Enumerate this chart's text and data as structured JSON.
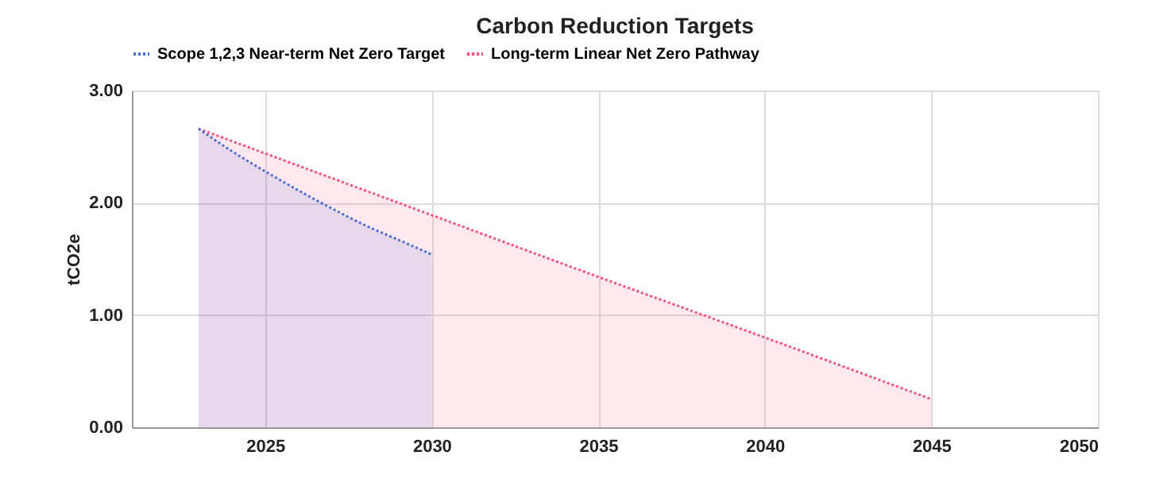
{
  "chart_data": {
    "type": "area",
    "title": "Carbon Reduction Targets",
    "ylabel": "tCO2e",
    "series": [
      {
        "name": "Scope 1,2,3 Near-term Net Zero Target",
        "color": "#4a6fd8",
        "x": [
          2023,
          2024,
          2025,
          2026,
          2027,
          2028,
          2029,
          2030
        ],
        "values": [
          2.66,
          2.46,
          2.28,
          2.11,
          1.95,
          1.8,
          1.67,
          1.54
        ]
      },
      {
        "name": "Long-term Linear Net Zero Pathway",
        "color": "#ff4d7a",
        "x": [
          2023,
          2030,
          2035,
          2040,
          2045
        ],
        "values": [
          2.66,
          1.89,
          1.34,
          0.8,
          0.25
        ]
      }
    ],
    "xlim": [
      2021,
      2050
    ],
    "xticks": [
      2025,
      2030,
      2035,
      2040,
      2045,
      2050
    ],
    "ylim": [
      0,
      3
    ],
    "yticks": [
      {
        "value": 0,
        "label": "0.00"
      },
      {
        "value": 1,
        "label": "1.00"
      },
      {
        "value": 2,
        "label": "2.00"
      },
      {
        "value": 3,
        "label": "3.00"
      }
    ],
    "grid": true,
    "legend": "top",
    "line_style": "dotted"
  }
}
